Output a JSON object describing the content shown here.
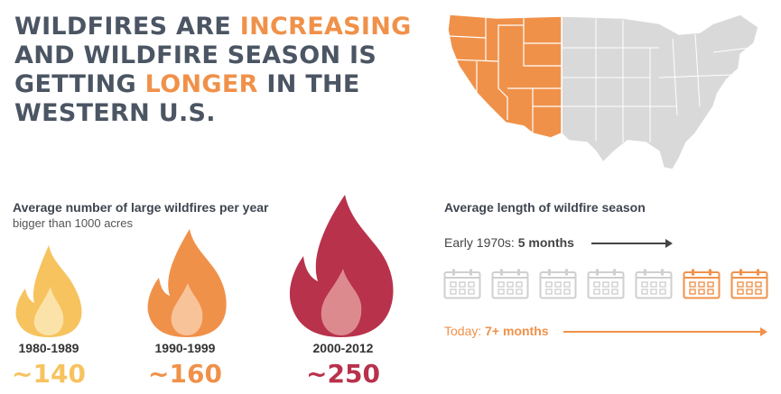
{
  "title": {
    "part1": "WILDFIRES ARE ",
    "part2": "INCREASING",
    "part3": " AND WILDFIRE SEASON IS GETTING ",
    "part4": "LONGER",
    "part5": " IN THE WESTERN U.S."
  },
  "colors": {
    "accent": "#f0914a",
    "title_gray": "#4b5563",
    "map_gray": "#d9d9d9",
    "flame_light": "#fbc96a",
    "flame_mid": "#f28c4d",
    "flame_dark": "#b8324c"
  },
  "fires": {
    "label": "Average number of large wildfires per year",
    "sublabel": "bigger than 1000 acres",
    "items": [
      {
        "period": "1980-1989",
        "count": "~140",
        "color": "#f7c35f"
      },
      {
        "period": "1990-1999",
        "count": "~160",
        "color": "#f0914a"
      },
      {
        "period": "2000-2012",
        "count": "~250",
        "color": "#b8324c"
      }
    ]
  },
  "season": {
    "label": "Average length of wildfire season",
    "early_prefix": "Early 1970s: ",
    "early_value": "5 months",
    "today_prefix": "Today: ",
    "today_value": "7+ months",
    "months_total": 7,
    "months_early": 5,
    "calendar_icon": "calendar-icon"
  }
}
